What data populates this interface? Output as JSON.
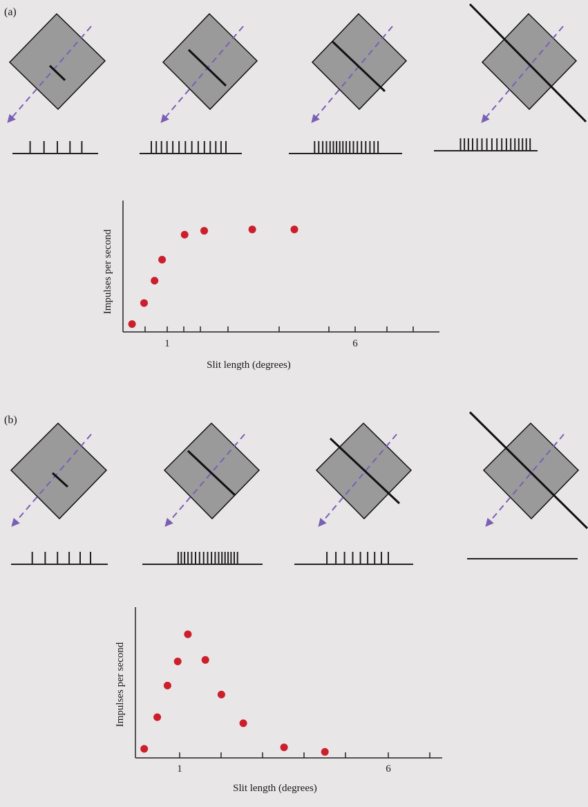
{
  "panels": [
    {
      "label": "(a)",
      "spike_counts": [
        5,
        14,
        18,
        17
      ],
      "chart_data": {
        "type": "scatter",
        "xlabel": "Slit length (degrees)",
        "ylabel": "Impulses per second",
        "x_ticks": [
          "1",
          "6"
        ],
        "xlim": [
          0,
          10
        ],
        "ylim": [
          0,
          10
        ],
        "point_color": "#cc1f2b",
        "series": [
          {
            "x": [
              0.3,
              0.7,
              1.05,
              1.3,
              2.05,
              2.7,
              4.3,
              5.7
            ],
            "y": [
              0.6,
              2.2,
              3.9,
              5.5,
              7.4,
              7.7,
              7.8,
              7.8
            ]
          }
        ]
      }
    },
    {
      "label": "(b)",
      "spike_counts": [
        6,
        18,
        9,
        0
      ],
      "chart_data": {
        "type": "scatter",
        "xlabel": "Slit length (degrees)",
        "ylabel": "Impulses per second",
        "x_ticks": [
          "1",
          "6"
        ],
        "xlim": [
          0,
          10
        ],
        "ylim": [
          0,
          10
        ],
        "point_color": "#cc1f2b",
        "series": [
          {
            "x": [
              0.3,
              0.75,
              1.1,
              1.45,
              1.8,
              2.4,
              2.95,
              3.7,
              5.1,
              6.5
            ],
            "y": [
              0.6,
              2.7,
              4.8,
              6.4,
              8.2,
              6.5,
              4.2,
              2.3,
              0.7,
              0.4
            ]
          }
        ]
      }
    }
  ]
}
